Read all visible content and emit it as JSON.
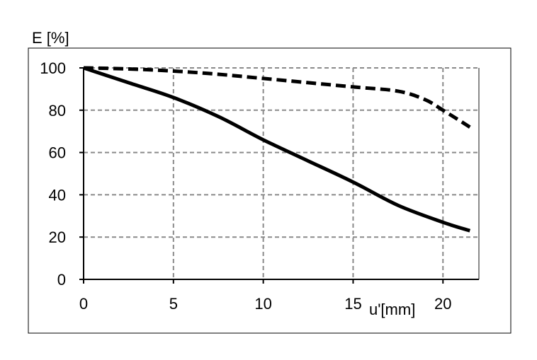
{
  "chart_data": {
    "type": "line",
    "ylabel": "E [%]",
    "xlabel": "u'[mm]",
    "xlim": [
      0,
      22
    ],
    "ylim": [
      0,
      100
    ],
    "xticks": [
      "0",
      "5",
      "10",
      "15",
      "20"
    ],
    "yticks": [
      "0",
      "20",
      "40",
      "60",
      "80",
      "100"
    ],
    "grid": true,
    "series": [
      {
        "style": "solid",
        "color": "#000000",
        "x": [
          0,
          2.5,
          5,
          7.5,
          10,
          12.5,
          15,
          17.5,
          20,
          21.5
        ],
        "y": [
          100,
          93,
          86,
          77,
          66,
          56,
          46,
          35,
          27,
          23
        ]
      },
      {
        "style": "dashed",
        "color": "#000000",
        "x": [
          0,
          2.5,
          5,
          7.5,
          10,
          12.5,
          15,
          17.5,
          19,
          20,
          21.5
        ],
        "y": [
          100,
          99.5,
          98.5,
          97,
          95,
          93,
          91,
          89,
          85,
          80,
          72
        ]
      }
    ]
  }
}
